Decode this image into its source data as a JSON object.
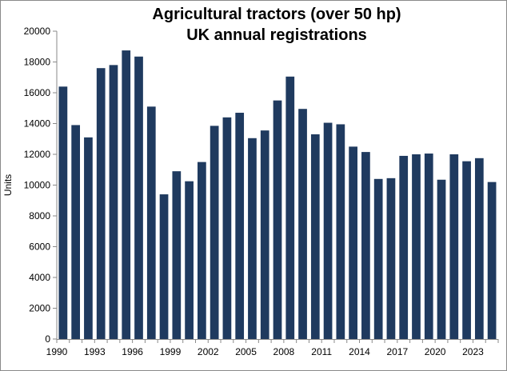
{
  "chart_data": {
    "type": "bar",
    "title_line1": "Agricultural tractors (over 50 hp)",
    "title_line2": "UK annual registrations",
    "ylabel": "Units",
    "xlabel": "",
    "ylim": [
      0,
      20000
    ],
    "y_ticks": [
      0,
      2000,
      4000,
      6000,
      8000,
      10000,
      12000,
      14000,
      16000,
      18000,
      20000
    ],
    "x_tick_labels": [
      "1990",
      "1993",
      "1996",
      "1999",
      "2002",
      "2005",
      "2008",
      "2011",
      "2014",
      "2017",
      "2020",
      "2023"
    ],
    "bar_color": "#1f3a5f",
    "grid": false,
    "legend": "none",
    "categories": [
      "1990",
      "1991",
      "1992",
      "1993",
      "1994",
      "1995",
      "1996",
      "1997",
      "1998",
      "1999",
      "2000",
      "2001",
      "2002",
      "2003",
      "2004",
      "2005",
      "2006",
      "2007",
      "2008",
      "2009",
      "2010",
      "2011",
      "2012",
      "2013",
      "2014",
      "2015",
      "2016",
      "2017",
      "2018",
      "2019",
      "2020",
      "2021",
      "2022",
      "2023",
      "2024"
    ],
    "values": [
      16400,
      13900,
      13100,
      17600,
      17800,
      18750,
      18350,
      15100,
      9400,
      10900,
      10250,
      11500,
      13850,
      14400,
      14700,
      13050,
      13550,
      15500,
      17050,
      14950,
      13300,
      14050,
      13950,
      12500,
      12150,
      10400,
      10450,
      11900,
      12000,
      12050,
      10350,
      12000,
      11550,
      11750,
      10200
    ]
  }
}
